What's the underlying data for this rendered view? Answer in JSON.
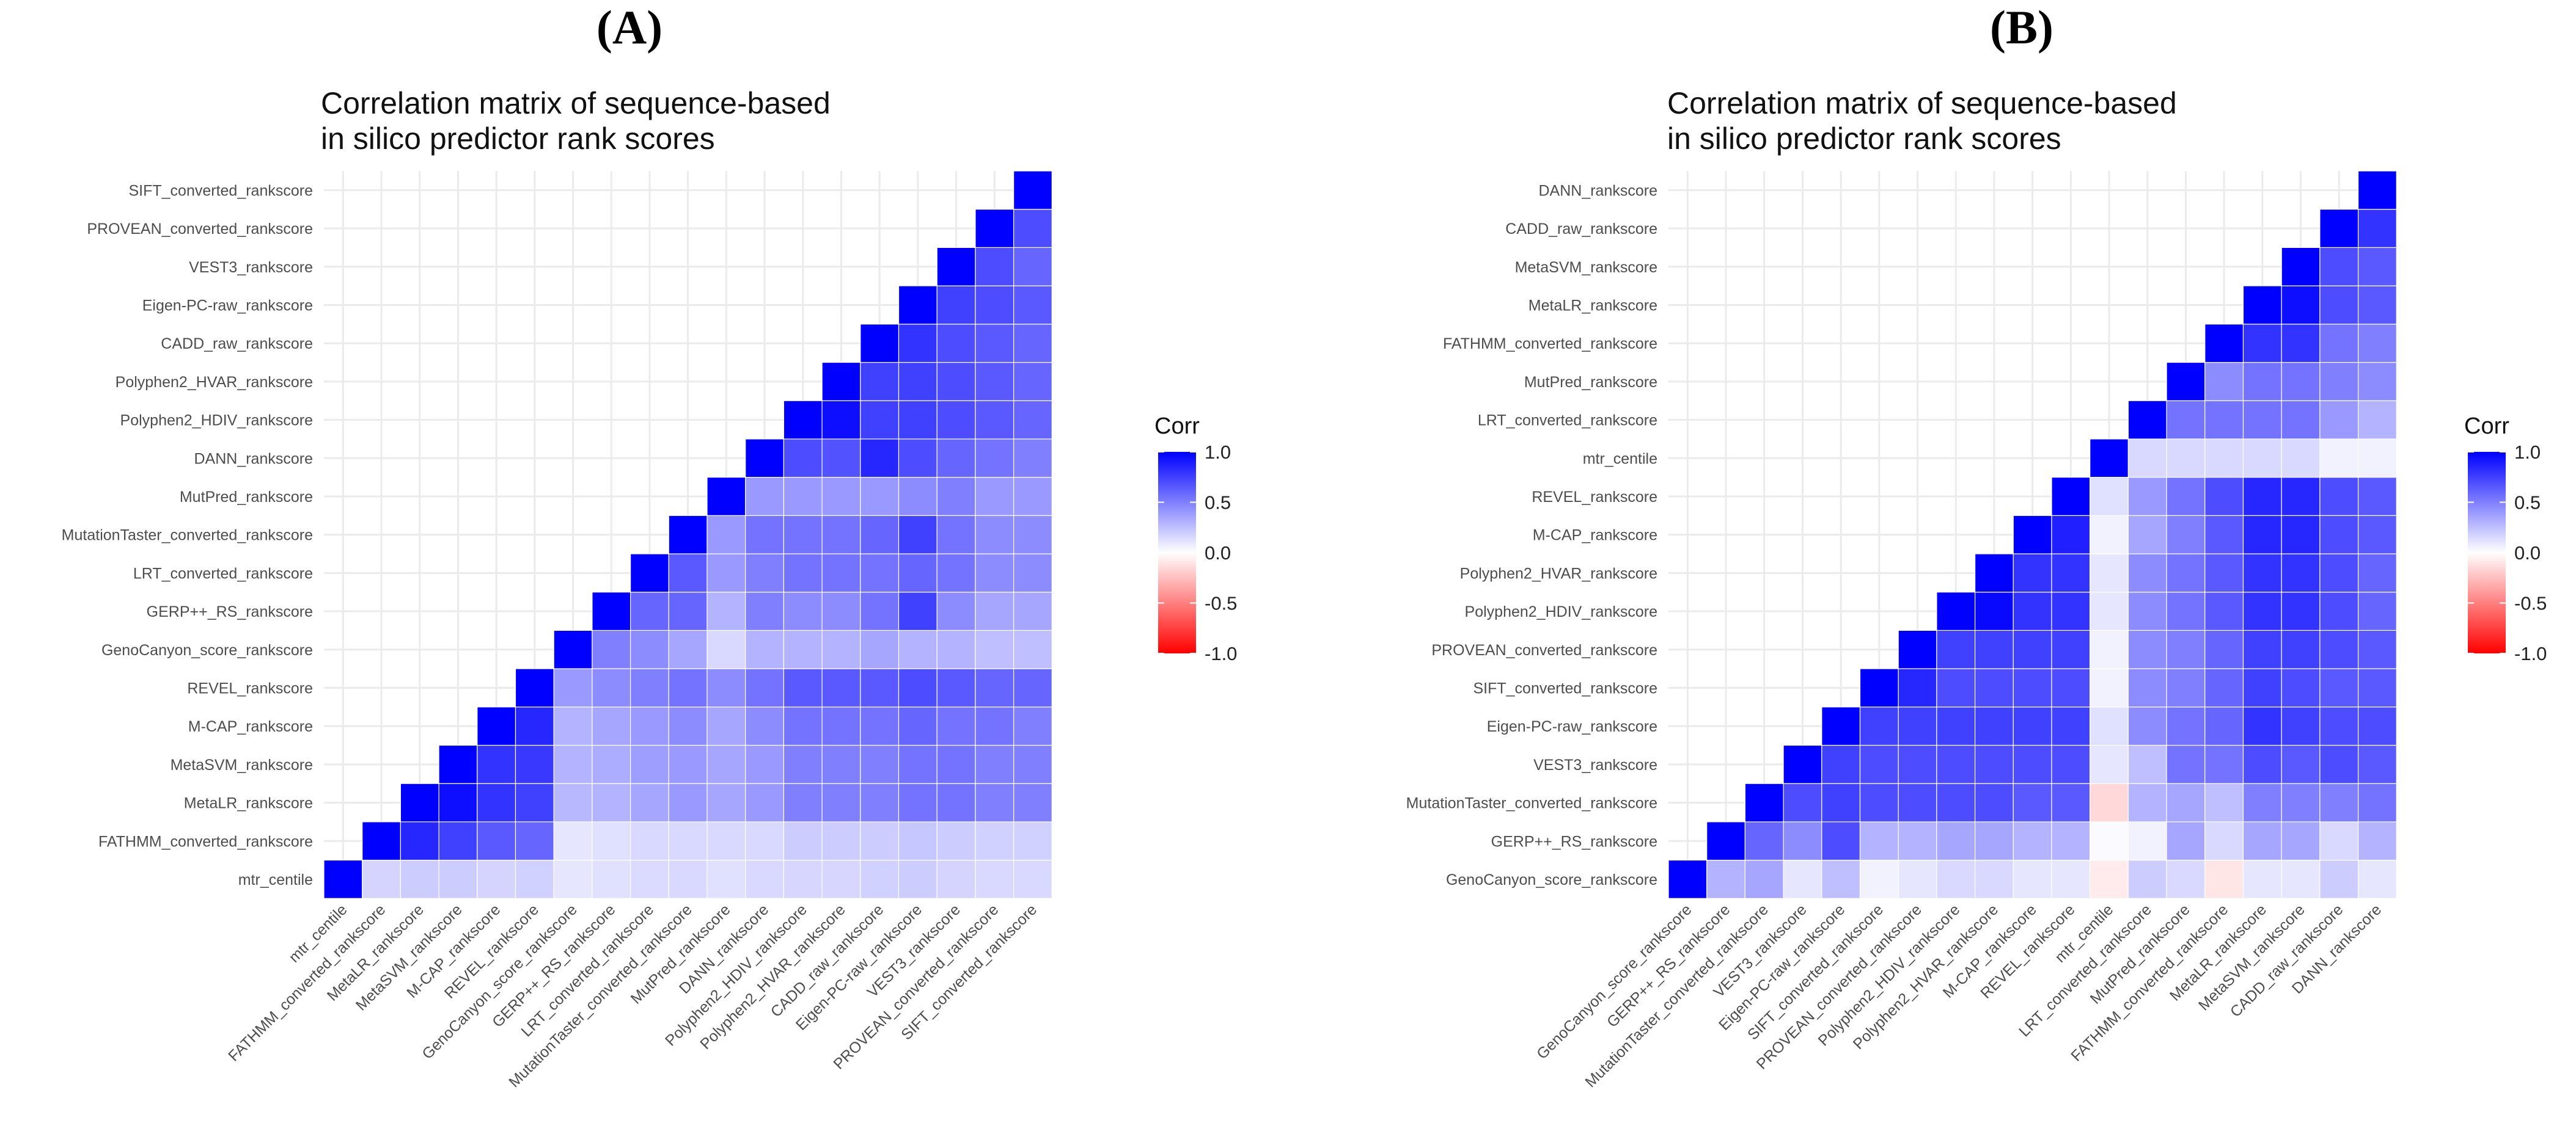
{
  "panels": [
    {
      "label": "(A)",
      "title_line1": "Correlation matrix of sequence-based",
      "title_line2": "in silico predictor rank scores"
    },
    {
      "label": "(B)",
      "title_line1": "Correlation matrix of sequence-based",
      "title_line2": "in silico predictor rank scores"
    }
  ],
  "colors": {
    "high": "#0000ff",
    "mid": "#ffffff",
    "low": "#ff0000",
    "grid": "#ebebeb"
  },
  "chart_data": [
    {
      "type": "heatmap",
      "title": "Correlation matrix of sequence-based in silico predictor rank scores",
      "legend_title": "Corr",
      "legend_ticks": [
        "1.0",
        "0.5",
        "0.0",
        "-0.5",
        "-1.0"
      ],
      "color_range": [
        -1,
        1
      ],
      "variables": [
        "mtr_centile",
        "FATHMM_converted_rankscore",
        "MetaLR_rankscore",
        "MetaSVM_rankscore",
        "M-CAP_rankscore",
        "REVEL_rankscore",
        "GenoCanyon_score_rankscore",
        "GERP++_RS_rankscore",
        "LRT_converted_rankscore",
        "MutationTaster_converted_rankscore",
        "MutPred_rankscore",
        "DANN_rankscore",
        "Polyphen2_HDIV_rankscore",
        "Polyphen2_HVAR_rankscore",
        "CADD_raw_rankscore",
        "Eigen-PC-raw_rankscore",
        "VEST3_rankscore",
        "PROVEAN_converted_rankscore",
        "SIFT_converted_rankscore"
      ],
      "matrix": [
        [
          1.0
        ],
        [
          0.17,
          1.0
        ],
        [
          0.2,
          0.85,
          1.0
        ],
        [
          0.2,
          0.75,
          0.95,
          1.0
        ],
        [
          0.17,
          0.65,
          0.8,
          0.8,
          1.0
        ],
        [
          0.18,
          0.6,
          0.75,
          0.78,
          0.85,
          1.0
        ],
        [
          0.1,
          0.1,
          0.28,
          0.3,
          0.3,
          0.4,
          1.0
        ],
        [
          0.12,
          0.12,
          0.3,
          0.32,
          0.35,
          0.45,
          0.5,
          1.0
        ],
        [
          0.14,
          0.15,
          0.35,
          0.38,
          0.4,
          0.5,
          0.45,
          0.6,
          1.0
        ],
        [
          0.15,
          0.15,
          0.4,
          0.4,
          0.45,
          0.55,
          0.35,
          0.6,
          0.65,
          1.0
        ],
        [
          0.12,
          0.15,
          0.35,
          0.35,
          0.35,
          0.45,
          0.15,
          0.3,
          0.4,
          0.4,
          1.0
        ],
        [
          0.15,
          0.15,
          0.4,
          0.4,
          0.45,
          0.55,
          0.3,
          0.5,
          0.5,
          0.55,
          0.4,
          1.0
        ],
        [
          0.16,
          0.2,
          0.5,
          0.5,
          0.55,
          0.65,
          0.3,
          0.45,
          0.55,
          0.55,
          0.4,
          0.7,
          1.0
        ],
        [
          0.16,
          0.2,
          0.5,
          0.5,
          0.55,
          0.65,
          0.3,
          0.45,
          0.55,
          0.55,
          0.4,
          0.68,
          0.95,
          1.0
        ],
        [
          0.18,
          0.2,
          0.5,
          0.5,
          0.55,
          0.65,
          0.35,
          0.55,
          0.55,
          0.6,
          0.4,
          0.85,
          0.75,
          0.75,
          1.0
        ],
        [
          0.2,
          0.22,
          0.55,
          0.55,
          0.6,
          0.7,
          0.3,
          0.75,
          0.6,
          0.75,
          0.45,
          0.7,
          0.75,
          0.75,
          0.8,
          1.0
        ],
        [
          0.17,
          0.2,
          0.55,
          0.55,
          0.55,
          0.65,
          0.3,
          0.45,
          0.55,
          0.55,
          0.5,
          0.6,
          0.7,
          0.7,
          0.7,
          0.75,
          1.0
        ],
        [
          0.15,
          0.18,
          0.5,
          0.5,
          0.55,
          0.6,
          0.25,
          0.35,
          0.45,
          0.45,
          0.4,
          0.55,
          0.65,
          0.65,
          0.65,
          0.7,
          0.7,
          1.0
        ],
        [
          0.15,
          0.18,
          0.5,
          0.5,
          0.5,
          0.6,
          0.25,
          0.35,
          0.45,
          0.45,
          0.4,
          0.5,
          0.6,
          0.6,
          0.6,
          0.65,
          0.6,
          0.7,
          1.0
        ]
      ]
    },
    {
      "type": "heatmap",
      "title": "Correlation matrix of sequence-based in silico predictor rank scores",
      "legend_title": "Corr",
      "legend_ticks": [
        "1.0",
        "0.5",
        "0.0",
        "-0.5",
        "-1.0"
      ],
      "color_range": [
        -1,
        1
      ],
      "variables": [
        "GenoCanyon_score_rankscore",
        "GERP++_RS_rankscore",
        "MutationTaster_converted_rankscore",
        "VEST3_rankscore",
        "Eigen-PC-raw_rankscore",
        "SIFT_converted_rankscore",
        "PROVEAN_converted_rankscore",
        "Polyphen2_HDIV_rankscore",
        "Polyphen2_HVAR_rankscore",
        "M-CAP_rankscore",
        "REVEL_rankscore",
        "mtr_centile",
        "LRT_converted_rankscore",
        "MutPred_rankscore",
        "FATHMM_converted_rankscore",
        "MetaLR_rankscore",
        "MetaSVM_rankscore",
        "CADD_raw_rankscore",
        "DANN_rankscore"
      ],
      "matrix": [
        [
          1.0
        ],
        [
          0.3,
          1.0
        ],
        [
          0.35,
          0.6,
          1.0
        ],
        [
          0.1,
          0.45,
          0.7,
          1.0
        ],
        [
          0.25,
          0.7,
          0.75,
          0.75,
          1.0
        ],
        [
          0.05,
          0.3,
          0.7,
          0.7,
          0.75,
          1.0
        ],
        [
          0.1,
          0.3,
          0.7,
          0.7,
          0.75,
          0.85,
          1.0
        ],
        [
          0.15,
          0.35,
          0.7,
          0.7,
          0.75,
          0.7,
          0.75,
          1.0
        ],
        [
          0.15,
          0.35,
          0.7,
          0.7,
          0.75,
          0.7,
          0.75,
          0.97,
          1.0
        ],
        [
          0.1,
          0.3,
          0.65,
          0.7,
          0.75,
          0.7,
          0.75,
          0.8,
          0.8,
          1.0
        ],
        [
          0.1,
          0.3,
          0.65,
          0.7,
          0.75,
          0.7,
          0.75,
          0.8,
          0.8,
          0.88,
          1.0
        ],
        [
          -0.08,
          0.02,
          -0.15,
          0.1,
          0.12,
          0.05,
          0.05,
          0.1,
          0.1,
          0.05,
          0.12,
          1.0
        ],
        [
          0.2,
          0.05,
          0.3,
          0.25,
          0.45,
          0.45,
          0.45,
          0.45,
          0.45,
          0.35,
          0.4,
          0.15,
          1.0
        ],
        [
          0.15,
          0.35,
          0.35,
          0.55,
          0.55,
          0.5,
          0.5,
          0.55,
          0.55,
          0.5,
          0.55,
          0.15,
          0.55,
          1.0
        ],
        [
          -0.1,
          0.15,
          0.25,
          0.55,
          0.6,
          0.6,
          0.6,
          0.65,
          0.65,
          0.65,
          0.7,
          0.15,
          0.55,
          0.45,
          1.0
        ],
        [
          0.1,
          0.35,
          0.5,
          0.7,
          0.8,
          0.75,
          0.75,
          0.8,
          0.8,
          0.85,
          0.85,
          0.15,
          0.55,
          0.55,
          0.8,
          1.0
        ],
        [
          0.1,
          0.35,
          0.5,
          0.65,
          0.75,
          0.7,
          0.75,
          0.8,
          0.8,
          0.85,
          0.85,
          0.15,
          0.55,
          0.55,
          0.8,
          0.95,
          1.0
        ],
        [
          0.2,
          0.15,
          0.5,
          0.7,
          0.7,
          0.65,
          0.7,
          0.7,
          0.7,
          0.7,
          0.7,
          0.05,
          0.4,
          0.5,
          0.55,
          0.7,
          0.7,
          1.0
        ],
        [
          0.1,
          0.3,
          0.55,
          0.65,
          0.7,
          0.65,
          0.65,
          0.6,
          0.6,
          0.65,
          0.65,
          0.05,
          0.3,
          0.45,
          0.5,
          0.65,
          0.65,
          0.8,
          1.0
        ]
      ]
    }
  ]
}
